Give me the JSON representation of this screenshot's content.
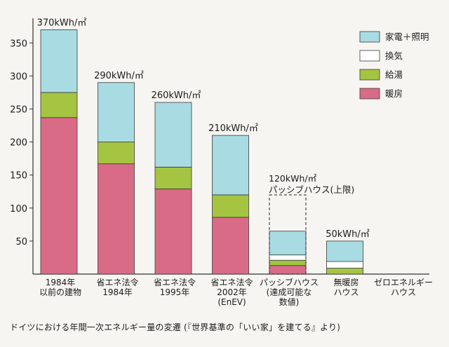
{
  "chart_data": {
    "type": "bar",
    "stacked": true,
    "categories": [
      [
        "1984年",
        "以前の建物"
      ],
      [
        "省エネ法令",
        "1984年"
      ],
      [
        "省エネ法令",
        "1995年"
      ],
      [
        "省エネ法令",
        "2002年",
        "(EnEV)"
      ],
      [
        "パッシブハウス",
        "(達成可能な",
        "数値)"
      ],
      [
        "無暖房",
        "ハウス"
      ],
      [
        "ゼロエネルギー",
        "ハウス"
      ]
    ],
    "series": [
      {
        "name": "暖房",
        "color": "#d96b86",
        "values": [
          237,
          167,
          129,
          86,
          13,
          0,
          0
        ]
      },
      {
        "name": "給湯",
        "color": "#a5c442",
        "values": [
          38,
          33,
          33,
          34,
          8,
          9,
          0
        ]
      },
      {
        "name": "換気",
        "color": "#ffffff",
        "values": [
          0,
          0,
          0,
          0,
          8,
          10,
          0
        ]
      },
      {
        "name": "家電＋照明",
        "color": "#a9dbe2",
        "values": [
          95,
          90,
          98,
          90,
          36,
          31,
          0
        ]
      }
    ],
    "totals_labels": [
      "370kWh/㎡",
      "290kWh/㎡",
      "260kWh/㎡",
      "210kWh/㎡",
      "",
      "50kWh/㎡",
      ""
    ],
    "limit_box": {
      "category_index": 4,
      "value": 120,
      "label_lines": [
        "120kWh/㎡",
        "パッシブハウス(上限)"
      ]
    },
    "legend": {
      "placement": "top-right",
      "order": [
        "家電＋照明",
        "換気",
        "給湯",
        "暖房"
      ]
    },
    "ylim": [
      0,
      380
    ],
    "yticks": [
      50,
      100,
      150,
      200,
      250,
      300,
      350
    ],
    "grid": false
  },
  "caption": "ドイツにおける年間一次エネルギー量の変遷 (『世界基準の「いい家」を建てる』より)"
}
